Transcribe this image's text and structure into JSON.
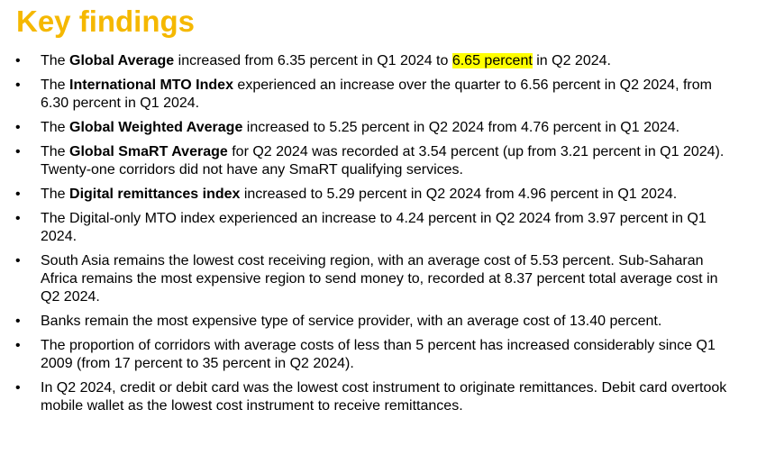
{
  "title": "Key findings",
  "colors": {
    "title": "#f5b800",
    "highlight": "#ffff00"
  },
  "findings": [
    {
      "pre": "The ",
      "bold": "Global Average",
      "mid": " increased from 6.35 percent in Q1 2024 to ",
      "highlight": "6.65 percent",
      "post": " in Q2 2024."
    },
    {
      "pre": "The ",
      "bold": "International MTO Index",
      "post": " experienced an increase over the quarter to 6.56 percent in Q2 2024, from 6.30 percent in Q1 2024."
    },
    {
      "pre": "The ",
      "bold": "Global Weighted Average",
      "post": " increased to 5.25 percent in Q2 2024 from 4.76 percent in Q1 2024."
    },
    {
      "pre": "The ",
      "bold": "Global SmaRT Average",
      "post": " for Q2 2024 was recorded at 3.54 percent (up from 3.21 percent in Q1 2024). Twenty-one corridors did not have any SmaRT qualifying services."
    },
    {
      "pre": "The ",
      "bold": "Digital remittances index",
      "post": " increased to 5.29 percent in Q2 2024 from 4.96 percent in Q1 2024."
    },
    {
      "text": "The Digital-only MTO index experienced an increase to 4.24 percent in Q2 2024 from 3.97 percent in Q1 2024."
    },
    {
      "text": "South Asia remains the lowest cost receiving region, with an average cost of 5.53 percent. Sub-Saharan Africa remains the most expensive region to send money to, recorded at 8.37 percent total average cost in Q2 2024."
    },
    {
      "text": "Banks remain the most expensive type of service provider, with an average cost of 13.40 percent."
    },
    {
      "text": "The proportion of corridors with average costs of less than 5 percent has increased considerably since Q1 2009 (from 17 percent to 35 percent in Q2 2024)."
    },
    {
      "text": "In Q2 2024, credit or debit card was the lowest cost instrument to originate remittances. Debit card overtook mobile wallet as the lowest cost instrument to receive remittances."
    }
  ],
  "bullet_glyph": "•"
}
